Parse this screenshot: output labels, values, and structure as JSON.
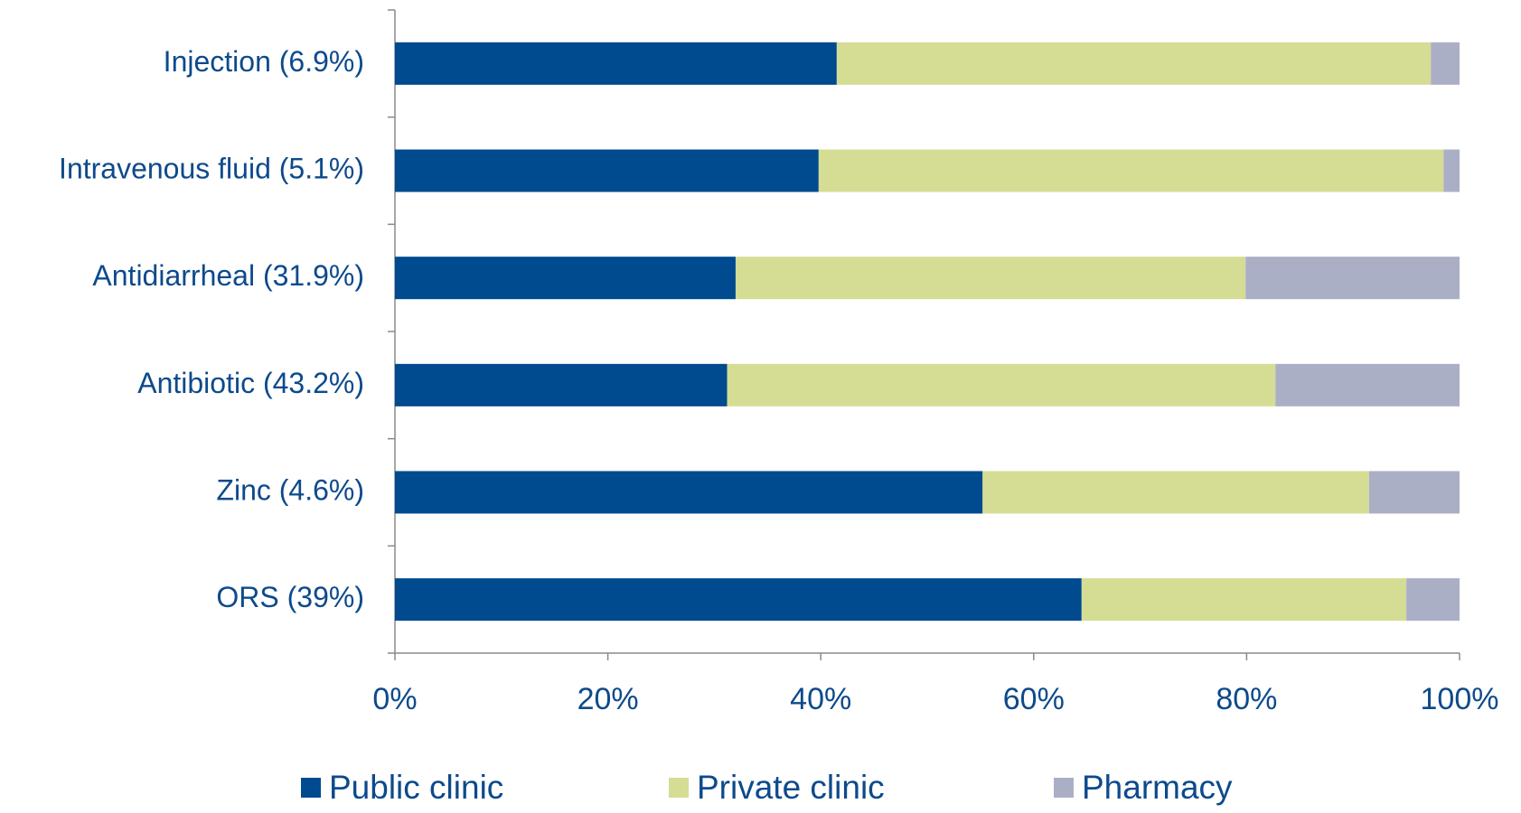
{
  "chart_data": {
    "type": "stacked_bar_horizontal",
    "categories": [
      "Injection (6.9%)",
      "Intravenous fluid (5.1%)",
      "Antidiarrheal (31.9%)",
      "Antibiotic (43.2%)",
      "Zinc (4.6%)",
      "ORS (39%)"
    ],
    "series": [
      {
        "name": "Public clinic",
        "color": "#004a8f",
        "values": [
          41.5,
          39.8,
          32.0,
          31.2,
          55.2,
          64.5
        ]
      },
      {
        "name": "Private clinic",
        "color": "#d5dc94",
        "values": [
          55.8,
          58.7,
          47.9,
          51.5,
          36.3,
          30.5
        ]
      },
      {
        "name": "Pharmacy",
        "color": "#abafc6",
        "values": [
          2.7,
          1.5,
          20.1,
          17.3,
          8.5,
          5.0
        ]
      }
    ],
    "xlim": [
      0,
      100
    ],
    "xticks": [
      {
        "value": 0,
        "label": "0%"
      },
      {
        "value": 20,
        "label": "20%"
      },
      {
        "value": 40,
        "label": "40%"
      },
      {
        "value": 60,
        "label": "60%"
      },
      {
        "value": 80,
        "label": "80%"
      },
      {
        "value": 100,
        "label": "100%"
      }
    ],
    "legend": "bottom"
  }
}
